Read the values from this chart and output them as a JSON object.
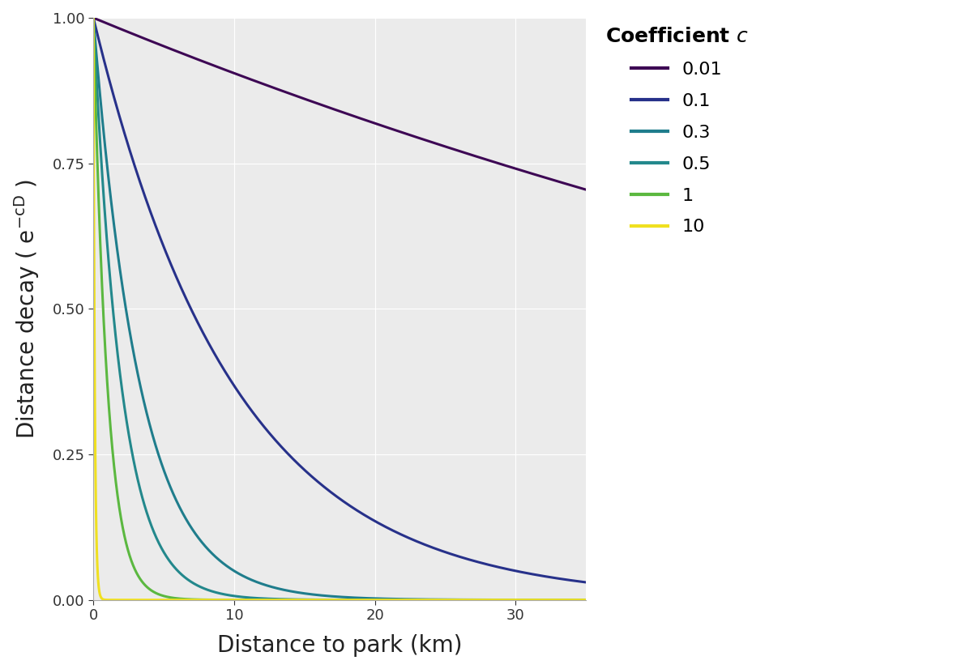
{
  "coefficients": [
    0.01,
    0.1,
    0.3,
    0.5,
    1,
    10
  ],
  "labels": [
    "0.01",
    "0.1",
    "0.3",
    "0.5",
    "1",
    "10"
  ],
  "colors": [
    "#3D0754",
    "#27318A",
    "#1F7D8C",
    "#23888C",
    "#5BB840",
    "#F0E020"
  ],
  "x_max": 35,
  "x_label": "Distance to park (km)",
  "legend_title": "Coefficient c",
  "line_width": 2.2,
  "background_color": "#FFFFFF",
  "panel_background": "#EBEBEB",
  "grid_color": "#FFFFFF",
  "x_ticks": [
    0,
    10,
    20,
    30
  ],
  "y_ticks": [
    0.0,
    0.25,
    0.5,
    0.75,
    1.0
  ],
  "ylim": [
    0.0,
    1.0
  ],
  "tick_fontsize": 13,
  "label_fontsize": 20,
  "legend_fontsize": 16,
  "legend_title_fontsize": 18
}
